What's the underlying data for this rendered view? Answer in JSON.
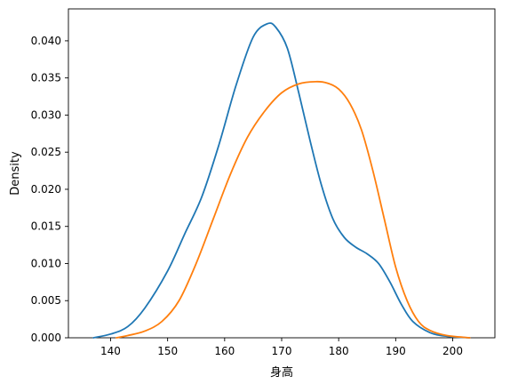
{
  "chart_data": {
    "type": "line",
    "title": "",
    "xlabel": "身高",
    "ylabel": "Density",
    "xlim": [
      132.6,
      207.4
    ],
    "ylim": [
      0.0,
      0.0443
    ],
    "xticks": [
      {
        "value": 140,
        "label": "140"
      },
      {
        "value": 150,
        "label": "150"
      },
      {
        "value": 160,
        "label": "160"
      },
      {
        "value": 170,
        "label": "170"
      },
      {
        "value": 180,
        "label": "180"
      },
      {
        "value": 190,
        "label": "190"
      },
      {
        "value": 200,
        "label": "200"
      }
    ],
    "yticks": [
      {
        "value": 0.0,
        "label": "0.000"
      },
      {
        "value": 0.005,
        "label": "0.005"
      },
      {
        "value": 0.01,
        "label": "0.010"
      },
      {
        "value": 0.015,
        "label": "0.015"
      },
      {
        "value": 0.02,
        "label": "0.020"
      },
      {
        "value": 0.025,
        "label": "0.025"
      },
      {
        "value": 0.03,
        "label": "0.030"
      },
      {
        "value": 0.035,
        "label": "0.035"
      },
      {
        "value": 0.04,
        "label": "0.040"
      }
    ],
    "grid": false,
    "legend": "none",
    "series": [
      {
        "color": "#1f77b4",
        "points": [
          [
            137.0,
            0.0
          ],
          [
            140.0,
            0.0005
          ],
          [
            143.0,
            0.0015
          ],
          [
            146.0,
            0.004
          ],
          [
            150.0,
            0.009
          ],
          [
            153.0,
            0.014
          ],
          [
            156.0,
            0.019
          ],
          [
            159.0,
            0.026
          ],
          [
            162.0,
            0.034
          ],
          [
            165.0,
            0.0405
          ],
          [
            167.5,
            0.0423
          ],
          [
            169.0,
            0.0418
          ],
          [
            171.0,
            0.039
          ],
          [
            173.0,
            0.033
          ],
          [
            175.0,
            0.0265
          ],
          [
            177.0,
            0.0205
          ],
          [
            179.0,
            0.016
          ],
          [
            181.0,
            0.0135
          ],
          [
            183.0,
            0.0122
          ],
          [
            185.0,
            0.0113
          ],
          [
            187.0,
            0.01
          ],
          [
            189.0,
            0.0075
          ],
          [
            191.0,
            0.0045
          ],
          [
            193.0,
            0.0022
          ],
          [
            196.0,
            0.0007
          ],
          [
            199.0,
            0.0002
          ],
          [
            203.0,
            0.0
          ]
        ]
      },
      {
        "color": "#ff7f0e",
        "points": [
          [
            141.0,
            0.0
          ],
          [
            143.0,
            0.0003
          ],
          [
            146.0,
            0.0009
          ],
          [
            149.0,
            0.0022
          ],
          [
            152.0,
            0.005
          ],
          [
            155.0,
            0.01
          ],
          [
            158.0,
            0.016
          ],
          [
            161.0,
            0.022
          ],
          [
            164.0,
            0.027
          ],
          [
            167.0,
            0.0305
          ],
          [
            170.0,
            0.033
          ],
          [
            173.0,
            0.0342
          ],
          [
            176.0,
            0.0345
          ],
          [
            178.0,
            0.0343
          ],
          [
            180.0,
            0.0335
          ],
          [
            182.0,
            0.0315
          ],
          [
            184.0,
            0.028
          ],
          [
            186.0,
            0.0225
          ],
          [
            188.0,
            0.016
          ],
          [
            190.0,
            0.0095
          ],
          [
            192.0,
            0.005
          ],
          [
            194.0,
            0.0022
          ],
          [
            196.0,
            0.001
          ],
          [
            199.0,
            0.0003
          ],
          [
            203.0,
            0.0
          ]
        ]
      }
    ]
  }
}
